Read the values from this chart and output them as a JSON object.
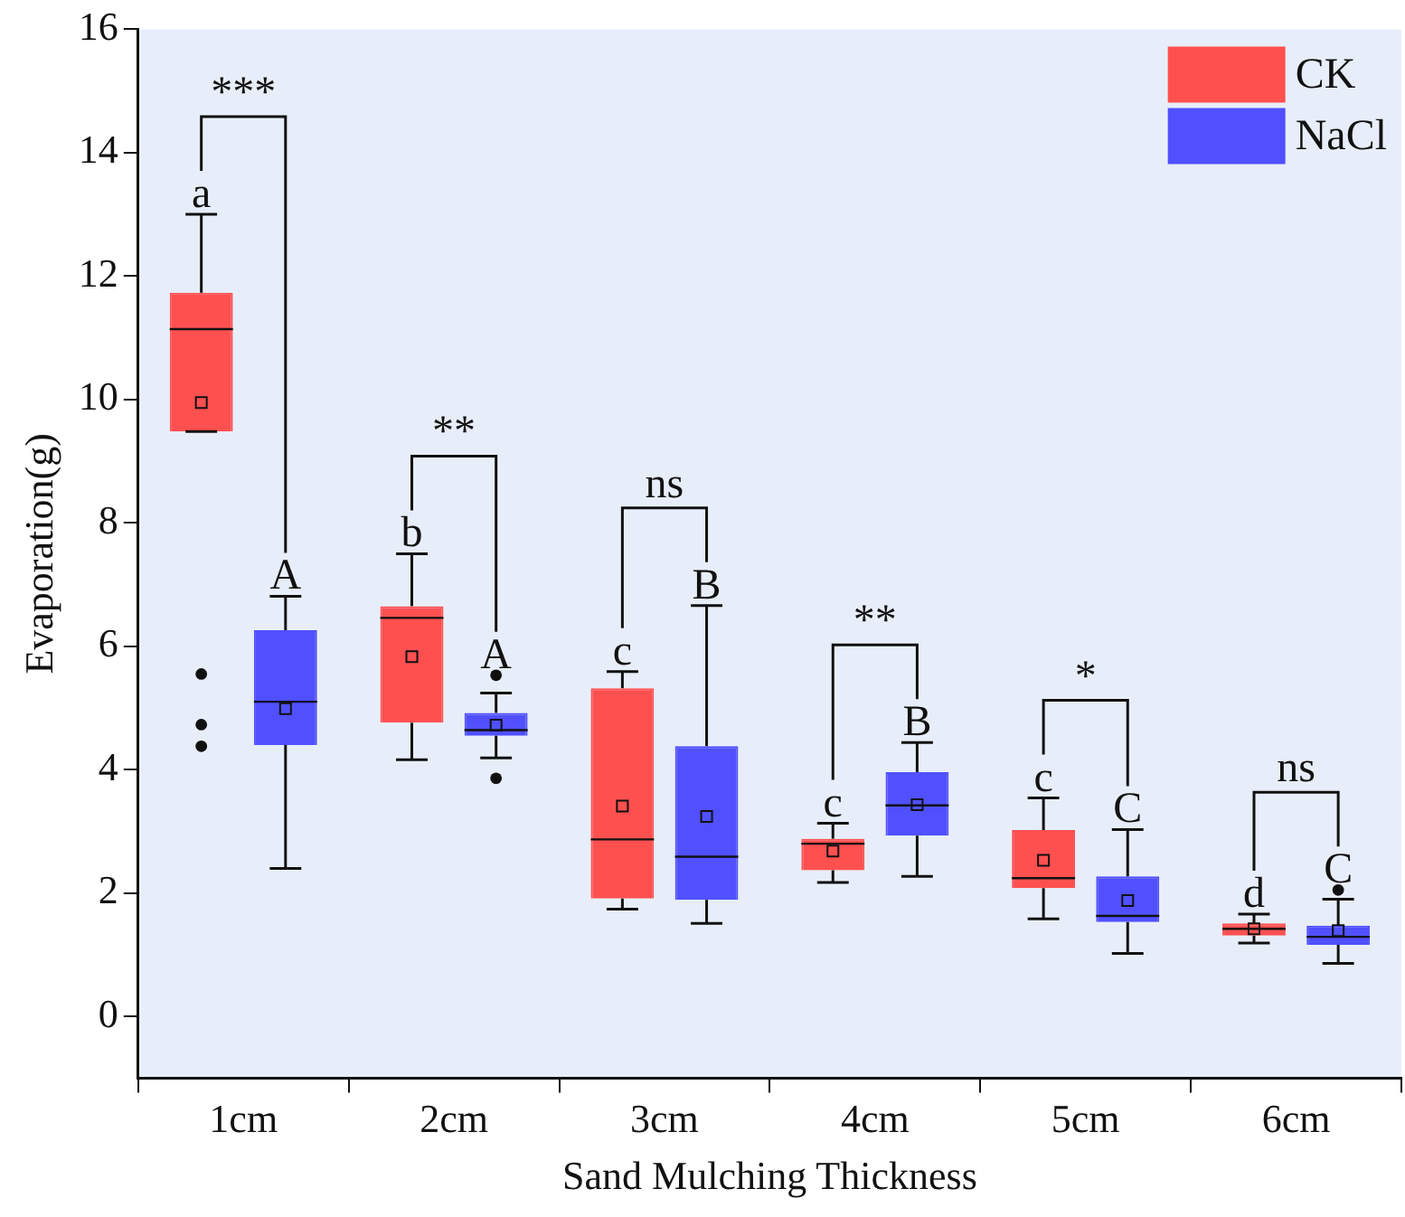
{
  "chart_data": {
    "type": "box",
    "xlabel": "Sand Mulching Thickness",
    "ylabel": "Evaporation(g)",
    "categories": [
      "1cm",
      "2cm",
      "3cm",
      "4cm",
      "5cm",
      "6cm"
    ],
    "ylim": [
      -1,
      16
    ],
    "yticks": [
      0,
      2,
      4,
      6,
      8,
      10,
      12,
      14,
      16
    ],
    "grid": false,
    "legend": "top right",
    "series": [
      {
        "name": "CK",
        "color": "#ff5050",
        "boxes": [
          {
            "low": 9.48,
            "q1": 9.48,
            "median": 11.14,
            "q3": 11.73,
            "high": 13.0,
            "mean": 9.95,
            "outliers": [
              5.55,
              4.73,
              4.38
            ]
          },
          {
            "low": 4.16,
            "q1": 4.76,
            "median": 6.46,
            "q3": 6.65,
            "high": 7.5,
            "mean": 5.83
          },
          {
            "low": 1.74,
            "q1": 1.91,
            "median": 2.87,
            "q3": 5.32,
            "high": 5.59,
            "mean": 3.41
          },
          {
            "low": 2.17,
            "q1": 2.37,
            "median": 2.8,
            "q3": 2.88,
            "high": 3.13,
            "mean": 2.68
          },
          {
            "low": 1.58,
            "q1": 2.08,
            "median": 2.24,
            "q3": 3.02,
            "high": 3.54,
            "mean": 2.53
          },
          {
            "low": 1.19,
            "q1": 1.31,
            "median": 1.42,
            "q3": 1.51,
            "high": 1.66,
            "mean": 1.42
          }
        ]
      },
      {
        "name": "NaCl",
        "color": "#5050ff",
        "boxes": [
          {
            "low": 2.4,
            "q1": 4.4,
            "median": 5.1,
            "q3": 6.26,
            "high": 6.81,
            "mean": 4.99
          },
          {
            "low": 4.19,
            "q1": 4.55,
            "median": 4.64,
            "q3": 4.92,
            "high": 5.24,
            "mean": 4.72,
            "outliers": [
              5.53,
              3.86
            ]
          },
          {
            "low": 1.51,
            "q1": 1.89,
            "median": 2.59,
            "q3": 4.38,
            "high": 6.66,
            "mean": 3.24
          },
          {
            "low": 2.27,
            "q1": 2.93,
            "median": 3.42,
            "q3": 3.96,
            "high": 4.44,
            "mean": 3.43
          },
          {
            "low": 1.02,
            "q1": 1.53,
            "median": 1.63,
            "q3": 2.27,
            "high": 3.03,
            "mean": 1.88
          },
          {
            "low": 0.86,
            "q1": 1.16,
            "median": 1.29,
            "q3": 1.47,
            "high": 1.9,
            "mean": 1.39,
            "outliers": [
              2.05
            ]
          }
        ]
      }
    ],
    "annotations": [
      "***",
      "**",
      "ns",
      "**",
      "*",
      "ns",
      "a",
      "A",
      "b",
      "A",
      "c",
      "B",
      "c",
      "B",
      "c",
      "C",
      "d",
      "C"
    ]
  }
}
